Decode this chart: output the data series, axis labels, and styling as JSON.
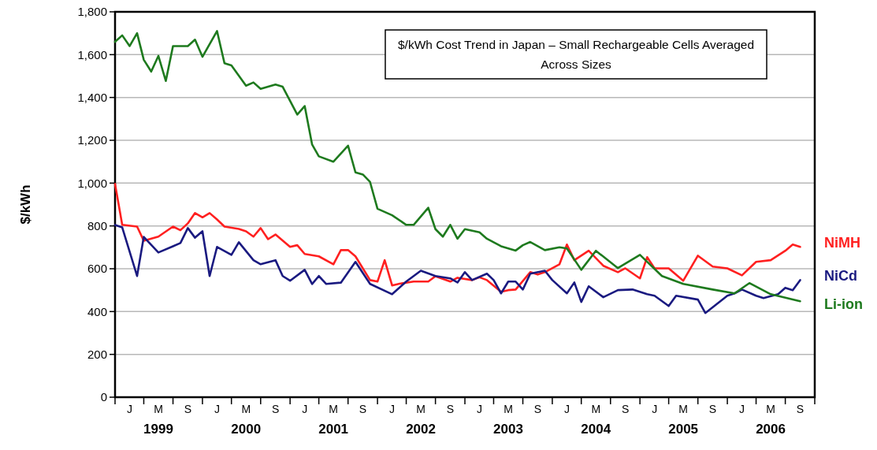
{
  "chart_data": {
    "type": "line",
    "title": "$/kWh Cost Trend in Japan – Small Rechargeable Cells Averaged Across Sizes",
    "ylabel": "$/kWh",
    "xlim": [
      "1998-11-01",
      "2006-11-01"
    ],
    "xticks": [
      {
        "value": "1998-11-01",
        "label": null
      },
      {
        "value": "1999-01-01",
        "label": "J"
      },
      {
        "value": "1999-03-01",
        "label": null
      },
      {
        "value": "1999-05-01",
        "label": "M\n1999"
      },
      {
        "value": "1999-07-01",
        "label": null
      },
      {
        "value": "1999-09-01",
        "label": "S"
      },
      {
        "value": "1999-11-01",
        "label": null
      },
      {
        "value": "2000-01-01",
        "label": "J"
      },
      {
        "value": "2000-03-01",
        "label": null
      },
      {
        "value": "2000-05-01",
        "label": "M\n2000"
      },
      {
        "value": "2000-07-01",
        "label": null
      },
      {
        "value": "2000-09-01",
        "label": "S"
      },
      {
        "value": "2000-11-01",
        "label": null
      },
      {
        "value": "2001-01-01",
        "label": "J"
      },
      {
        "value": "2001-03-01",
        "label": null
      },
      {
        "value": "2001-05-01",
        "label": "M\n2001"
      },
      {
        "value": "2001-07-01",
        "label": null
      },
      {
        "value": "2001-09-01",
        "label": "S"
      },
      {
        "value": "2001-11-01",
        "label": null
      },
      {
        "value": "2002-01-01",
        "label": "J"
      },
      {
        "value": "2002-03-01",
        "label": null
      },
      {
        "value": "2002-05-01",
        "label": "M\n2002"
      },
      {
        "value": "2002-07-01",
        "label": null
      },
      {
        "value": "2002-09-01",
        "label": "S"
      },
      {
        "value": "2002-11-01",
        "label": null
      },
      {
        "value": "2003-01-01",
        "label": "J"
      },
      {
        "value": "2003-03-01",
        "label": null
      },
      {
        "value": "2003-05-01",
        "label": "M\n2003"
      },
      {
        "value": "2003-07-01",
        "label": null
      },
      {
        "value": "2003-09-01",
        "label": "S"
      },
      {
        "value": "2003-11-01",
        "label": null
      },
      {
        "value": "2004-01-01",
        "label": "J"
      },
      {
        "value": "2004-03-01",
        "label": null
      },
      {
        "value": "2004-05-01",
        "label": "M\n2004"
      },
      {
        "value": "2004-07-01",
        "label": null
      },
      {
        "value": "2004-09-01",
        "label": "S"
      },
      {
        "value": "2004-11-01",
        "label": null
      },
      {
        "value": "2005-01-01",
        "label": "J"
      },
      {
        "value": "2005-03-01",
        "label": null
      },
      {
        "value": "2005-05-01",
        "label": "M\n2005"
      },
      {
        "value": "2005-07-01",
        "label": null
      },
      {
        "value": "2005-09-01",
        "label": "S"
      },
      {
        "value": "2005-11-01",
        "label": null
      },
      {
        "value": "2006-01-01",
        "label": "J"
      },
      {
        "value": "2006-03-01",
        "label": null
      },
      {
        "value": "2006-05-01",
        "label": "M\n2006"
      },
      {
        "value": "2006-07-01",
        "label": null
      },
      {
        "value": "2006-09-01",
        "label": "S"
      },
      {
        "value": "2006-11-01",
        "label": null
      }
    ],
    "ylim": [
      0,
      1800
    ],
    "yticks": [
      0,
      200,
      400,
      600,
      800,
      {
        "value": 1000,
        "label": "1,000"
      },
      {
        "value": 1200,
        "label": "1,200"
      },
      {
        "value": 1400,
        "label": "1,400"
      },
      {
        "value": 1600,
        "label": "1,600"
      },
      {
        "value": 1800,
        "label": "1,800"
      }
    ],
    "grid": "y",
    "legend": false,
    "marker": "none",
    "line_style": "solid",
    "series": [
      {
        "name": "NiMH",
        "color": "#ff2020",
        "x": [
          "1998-11",
          "1998-12",
          "1999-02",
          "1999-03",
          "1999-05",
          "1999-07",
          "1999-08",
          "1999-09",
          "1999-10",
          "1999-11",
          "1999-12",
          "2000-01",
          "2000-02",
          "2000-04",
          "2000-05",
          "2000-06",
          "2000-07",
          "2000-08",
          "2000-09",
          "2000-11",
          "2000-12",
          "2001-01",
          "2001-03",
          "2001-05",
          "2001-06",
          "2001-07",
          "2001-08",
          "2001-10",
          "2001-11",
          "2001-12",
          "2002-01",
          "2002-02",
          "2002-04",
          "2002-06",
          "2002-07",
          "2002-09",
          "2002-10",
          "2002-12",
          "2003-01",
          "2003-02",
          "2003-04",
          "2003-05",
          "2003-06",
          "2003-08",
          "2003-09",
          "2003-10",
          "2003-12",
          "2004-01",
          "2004-02",
          "2004-04",
          "2004-06",
          "2004-08",
          "2004-09",
          "2004-11",
          "2004-12",
          "2005-01",
          "2005-03",
          "2005-05",
          "2005-07",
          "2005-09",
          "2005-11",
          "2006-01",
          "2006-03",
          "2006-05",
          "2006-07",
          "2006-08",
          "2006-09"
        ],
        "values": [
          996,
          805,
          797,
          731,
          750,
          797,
          780,
          812,
          860,
          840,
          860,
          830,
          797,
          786,
          775,
          750,
          790,
          738,
          760,
          702,
          710,
          669,
          658,
          621,
          687,
          687,
          658,
          547,
          540,
          640,
          522,
          530,
          540,
          540,
          565,
          540,
          558,
          547,
          560,
          547,
          492,
          500,
          503,
          584,
          573,
          584,
          621,
          713,
          640,
          684,
          614,
          584,
          602,
          555,
          654,
          602,
          602,
          544,
          661,
          610,
          602,
          569,
          632,
          640,
          684,
          713,
          702
        ]
      },
      {
        "name": "NiCd",
        "color": "#1a1a80",
        "x": [
          "1998-11",
          "1998-12",
          "1999-02",
          "1999-03",
          "1999-05",
          "1999-07",
          "1999-08",
          "1999-09",
          "1999-10",
          "1999-11",
          "1999-12",
          "2000-01",
          "2000-03",
          "2000-04",
          "2000-06",
          "2000-07",
          "2000-09",
          "2000-10",
          "2000-11",
          "2001-01",
          "2001-02",
          "2001-03",
          "2001-04",
          "2001-06",
          "2001-08",
          "2001-10",
          "2002-01",
          "2002-03",
          "2002-05",
          "2002-07",
          "2002-09",
          "2002-10",
          "2002-11",
          "2002-12",
          "2003-02",
          "2003-03",
          "2003-04",
          "2003-05",
          "2003-06",
          "2003-07",
          "2003-08",
          "2003-10",
          "2003-11",
          "2004-01",
          "2004-02",
          "2004-03",
          "2004-04",
          "2004-06",
          "2004-08",
          "2004-10",
          "2004-12",
          "2005-01",
          "2005-03",
          "2005-04",
          "2005-07",
          "2005-08",
          "2005-11",
          "2005-12",
          "2006-01",
          "2006-03",
          "2006-04",
          "2006-06",
          "2006-07",
          "2006-08",
          "2006-09"
        ],
        "values": [
          804,
          793,
          566,
          749,
          676,
          705,
          720,
          790,
          745,
          775,
          566,
          702,
          665,
          724,
          640,
          621,
          640,
          566,
          544,
          595,
          529,
          566,
          529,
          535,
          632,
          529,
          481,
          540,
          591,
          566,
          555,
          536,
          584,
          547,
          577,
          547,
          485,
          540,
          540,
          503,
          577,
          591,
          547,
          485,
          536,
          445,
          518,
          467,
          500,
          503,
          481,
          474,
          426,
          474,
          456,
          393,
          474,
          485,
          503,
          474,
          463,
          481,
          511,
          500,
          547
        ]
      },
      {
        "name": "Li-ion",
        "color": "#1e7a1e",
        "x": [
          "1998-11",
          "1998-12",
          "1999-01",
          "1999-02",
          "1999-03",
          "1999-04",
          "1999-05",
          "1999-06",
          "1999-07",
          "1999-09",
          "1999-10",
          "1999-11",
          "2000-01",
          "2000-02",
          "2000-03",
          "2000-05",
          "2000-06",
          "2000-07",
          "2000-09",
          "2000-10",
          "2000-12",
          "2001-01",
          "2001-02",
          "2001-03",
          "2001-05",
          "2001-07",
          "2001-08",
          "2001-09",
          "2001-10",
          "2001-11",
          "2002-01",
          "2002-03",
          "2002-04",
          "2002-06",
          "2002-07",
          "2002-08",
          "2002-09",
          "2002-10",
          "2002-11",
          "2003-01",
          "2003-02",
          "2003-04",
          "2003-06",
          "2003-07",
          "2003-08",
          "2003-10",
          "2003-12",
          "2004-01",
          "2004-03",
          "2004-05",
          "2004-08",
          "2004-11",
          "2005-02",
          "2005-05",
          "2005-09",
          "2005-12",
          "2006-02",
          "2006-05",
          "2006-09"
        ],
        "values": [
          1660,
          1690,
          1640,
          1700,
          1576,
          1521,
          1594,
          1477,
          1640,
          1640,
          1670,
          1590,
          1710,
          1560,
          1550,
          1455,
          1470,
          1440,
          1460,
          1450,
          1320,
          1360,
          1180,
          1125,
          1100,
          1175,
          1050,
          1040,
          1005,
          880,
          850,
          805,
          805,
          885,
          785,
          750,
          805,
          740,
          785,
          770,
          740,
          705,
          685,
          710,
          725,
          687,
          700,
          695,
          595,
          684,
          603,
          665,
          566,
          529,
          503,
          485,
          533,
          481,
          448
        ]
      }
    ]
  }
}
